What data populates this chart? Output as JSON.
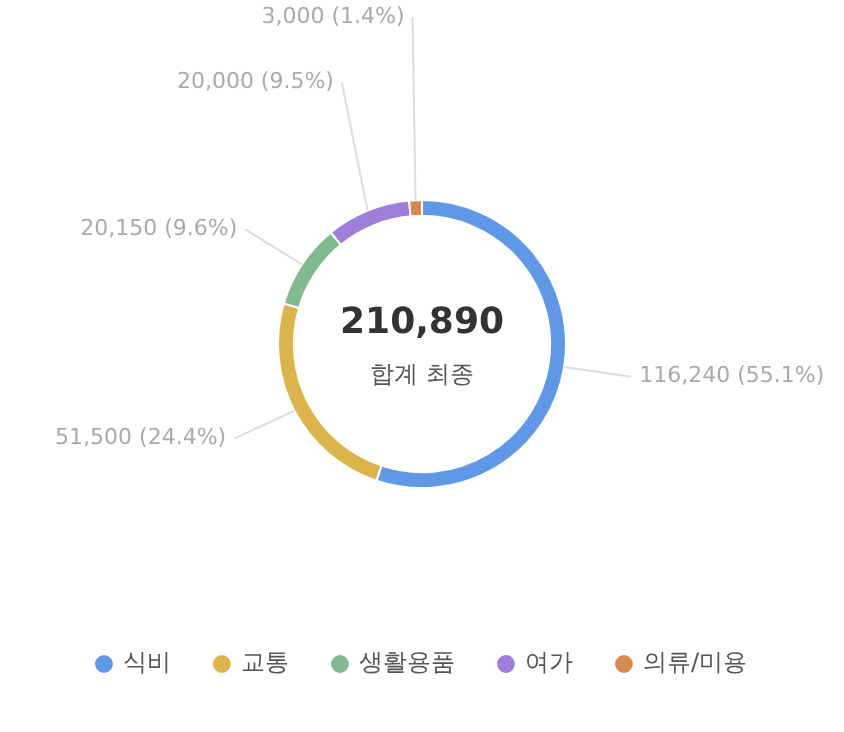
{
  "chart_data": {
    "type": "donut",
    "categories": [
      "식비",
      "교통",
      "생활용품",
      "여가",
      "의류/미용"
    ],
    "values": [
      116240,
      51500,
      20150,
      20000,
      3000
    ],
    "colors": [
      "#5f98e6",
      "#dbb54a",
      "#7fbb8f",
      "#9d7fdb",
      "#d98b4e"
    ],
    "value_labels": [
      "116,240 (55.1%)",
      "51,500 (24.4%)",
      "20,150 (9.6%)",
      "20,000 (9.5%)",
      "3,000 (1.4%)"
    ],
    "annotations": [
      "210,890",
      "합계 최종"
    ],
    "legend": "bottom"
  }
}
